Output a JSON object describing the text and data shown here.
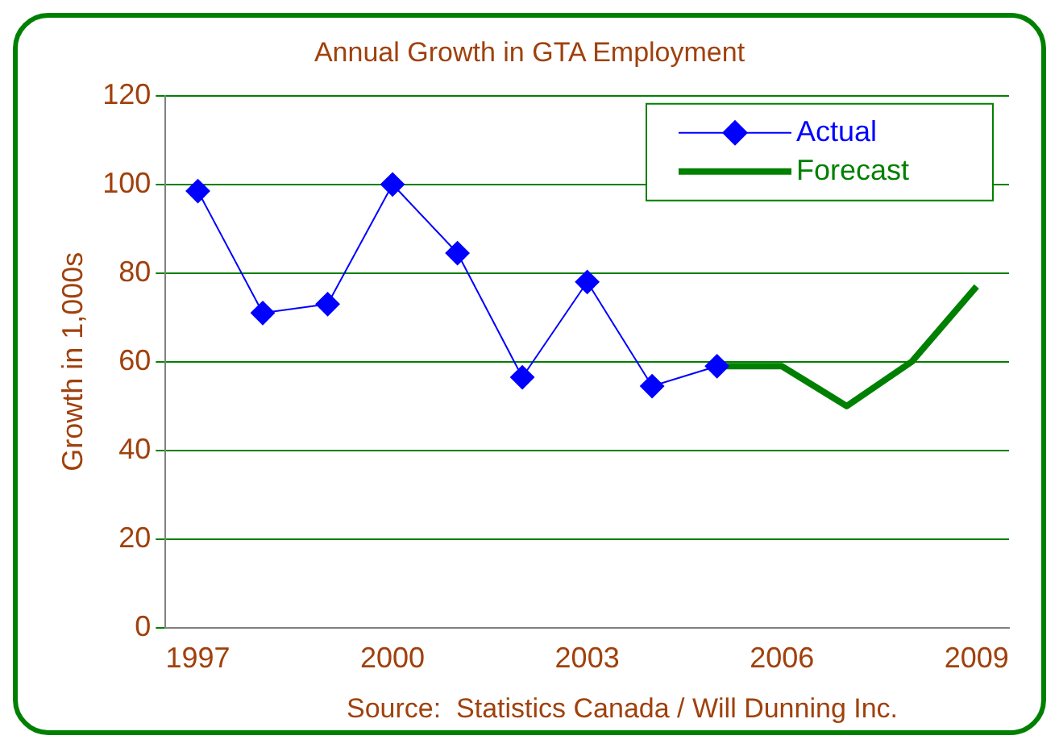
{
  "chart_data": {
    "type": "line",
    "title": "Annual Growth in GTA Employment",
    "ylabel": "Growth in 1,000s",
    "categories": [
      "1997",
      null,
      null,
      "2000",
      null,
      null,
      "2003",
      null,
      null,
      "2006",
      null,
      null,
      "2009"
    ],
    "series": [
      {
        "name": "Actual",
        "color": "#0000ff",
        "marker": "diamond",
        "values": [
          98.5,
          71,
          73,
          100,
          84.5,
          56.5,
          78,
          54.5,
          59,
          null,
          null,
          null,
          null
        ]
      },
      {
        "name": "Forecast",
        "color": "#008000",
        "marker": "none",
        "values": [
          null,
          null,
          null,
          null,
          null,
          null,
          null,
          null,
          59,
          59,
          50,
          60,
          77
        ]
      }
    ],
    "ylim": [
      0,
      120
    ],
    "yticks": [
      0,
      20,
      40,
      60,
      80,
      100,
      120
    ],
    "grid": "y",
    "legend": "top right",
    "annotations": [
      "Source:  Statistics Canada / Will Dunning Inc."
    ]
  }
}
